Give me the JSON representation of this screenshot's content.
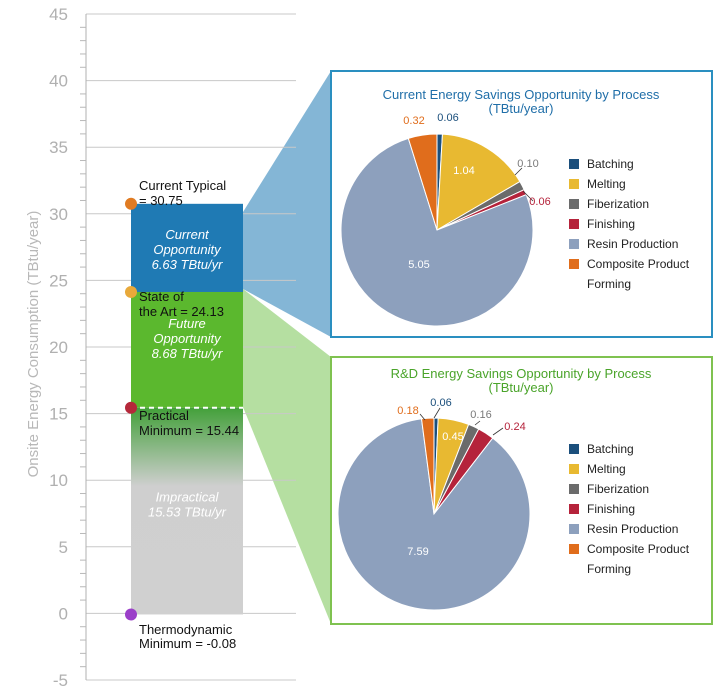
{
  "axis": {
    "ylabel": "Onsite Energy Consumption (TBtu/year)",
    "ylim": [
      -5,
      45
    ],
    "ticks": [
      -5,
      0,
      5,
      10,
      15,
      20,
      25,
      30,
      35,
      40,
      45
    ]
  },
  "bands": [
    {
      "key": "current",
      "lines": [
        "Current",
        "Opportunity",
        "6.63 TBtu/yr"
      ],
      "from": 24.13,
      "to": 30.75,
      "color": "#1f7ab4"
    },
    {
      "key": "future",
      "lines": [
        "Future",
        "Opportunity",
        "8.68 TBtu/yr"
      ],
      "from": 15.44,
      "to": 24.13,
      "color": "#5bb82e"
    },
    {
      "key": "impractical",
      "lines": [
        "Impractical",
        "15.53 TBtu/yr"
      ],
      "from": -0.08,
      "to": 15.44,
      "color": "#cccccc"
    }
  ],
  "markers": [
    {
      "key": "current-typical",
      "value": 30.75,
      "color": "#e07b22",
      "lines": [
        "Current Typical",
        "= 30.75"
      ]
    },
    {
      "key": "state-of-art",
      "value": 24.13,
      "color": "#e8a93a",
      "lines": [
        "State of",
        "the Art = 24.13"
      ]
    },
    {
      "key": "practical-min",
      "value": 15.44,
      "color": "#b5283a",
      "lines": [
        "Practical",
        "Minimum = 15.44"
      ]
    },
    {
      "key": "thermo-min",
      "value": -0.08,
      "color": "#9b3fc9",
      "lines": [
        "Thermodynamic",
        "Minimum = -0.08"
      ]
    }
  ],
  "legend_items": [
    "Batching",
    "Melting",
    "Fiberization",
    "Finishing",
    "Resin Production",
    "Composite Product",
    "Forming"
  ],
  "chart_data": [
    {
      "type": "pie",
      "title": "Current Energy Savings Opportunity by Process",
      "subtitle": "(TBtu/year)",
      "border_color": "#2a8fc0",
      "categories": [
        "Batching",
        "Melting",
        "Fiberization",
        "Finishing",
        "Resin Production",
        "Composite Product Forming"
      ],
      "values": [
        0.06,
        1.04,
        0.1,
        0.06,
        5.05,
        0.32
      ],
      "value_labels": [
        "0.06",
        "1.04",
        "0.10",
        "0.06",
        "5.05",
        "0.32"
      ],
      "colors": [
        "#1b4f7c",
        "#e8b931",
        "#6b6b6b",
        "#b5233b",
        "#8da0bd",
        "#e06d1c"
      ]
    },
    {
      "type": "pie",
      "title": "R&D Energy Savings Opportunity by Process",
      "subtitle": "(TBtu/year)",
      "border_color": "#7fc250",
      "categories": [
        "Batching",
        "Melting",
        "Fiberization",
        "Finishing",
        "Resin Production",
        "Composite Product Forming"
      ],
      "values": [
        0.06,
        0.45,
        0.16,
        0.24,
        7.59,
        0.18
      ],
      "value_labels": [
        "0.06",
        "0.45",
        "0.16",
        "0.24",
        "7.59",
        "0.18"
      ],
      "colors": [
        "#1b4f7c",
        "#e8b931",
        "#6b6b6b",
        "#b5233b",
        "#8da0bd",
        "#e06d1c"
      ]
    }
  ]
}
